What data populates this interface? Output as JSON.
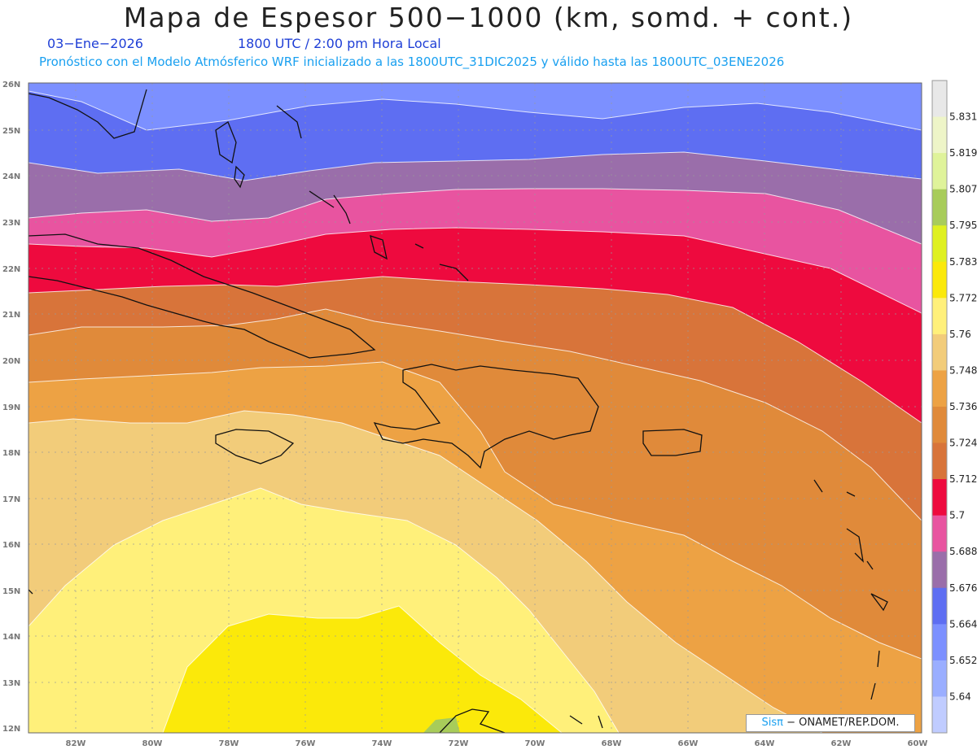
{
  "header": {
    "title": "Mapa de Espesor 500−1000 (km, somd. + cont.)",
    "date": "03−Ene−2026",
    "time": "1800 UTC / 2:00 pm Hora Local",
    "subtitle": "Pronóstico con el Modelo Atmósferico WRF inicializado a las 1800UTC_31DIC2025 y válido hasta las  1800UTC_03ENE2026"
  },
  "axes": {
    "lat_labels": [
      "26N",
      "25N",
      "24N",
      "23N",
      "22N",
      "21N",
      "20N",
      "19N",
      "18N",
      "17N",
      "16N",
      "15N",
      "14N",
      "13N",
      "12N"
    ],
    "lon_labels": [
      "82W",
      "80W",
      "78W",
      "76W",
      "74W",
      "72W",
      "70W",
      "68W",
      "66W",
      "64W",
      "62W",
      "60W"
    ]
  },
  "colorbar": {
    "labels": [
      "5.831",
      "5.819",
      "5.807",
      "5.795",
      "5.783",
      "5.772",
      "5.76",
      "5.748",
      "5.736",
      "5.724",
      "5.712",
      "5.7",
      "5.688",
      "5.676",
      "5.664",
      "5.652",
      "5.64"
    ],
    "colors": [
      "#e8e8e8",
      "#eef5c8",
      "#dff39a",
      "#a8cc5a",
      "#dff020",
      "#fbe90a",
      "#fff07a",
      "#f2cc7a",
      "#eda244",
      "#e08a3a",
      "#d8743a",
      "#ee0a3e",
      "#e854a0",
      "#9a6eaa",
      "#5e6ef2",
      "#7c90ff",
      "#9aaeff",
      "#c0ccff"
    ]
  },
  "credit": {
    "brand": "Sisπ",
    "text": "− ONAMET/REP.DOM."
  }
}
